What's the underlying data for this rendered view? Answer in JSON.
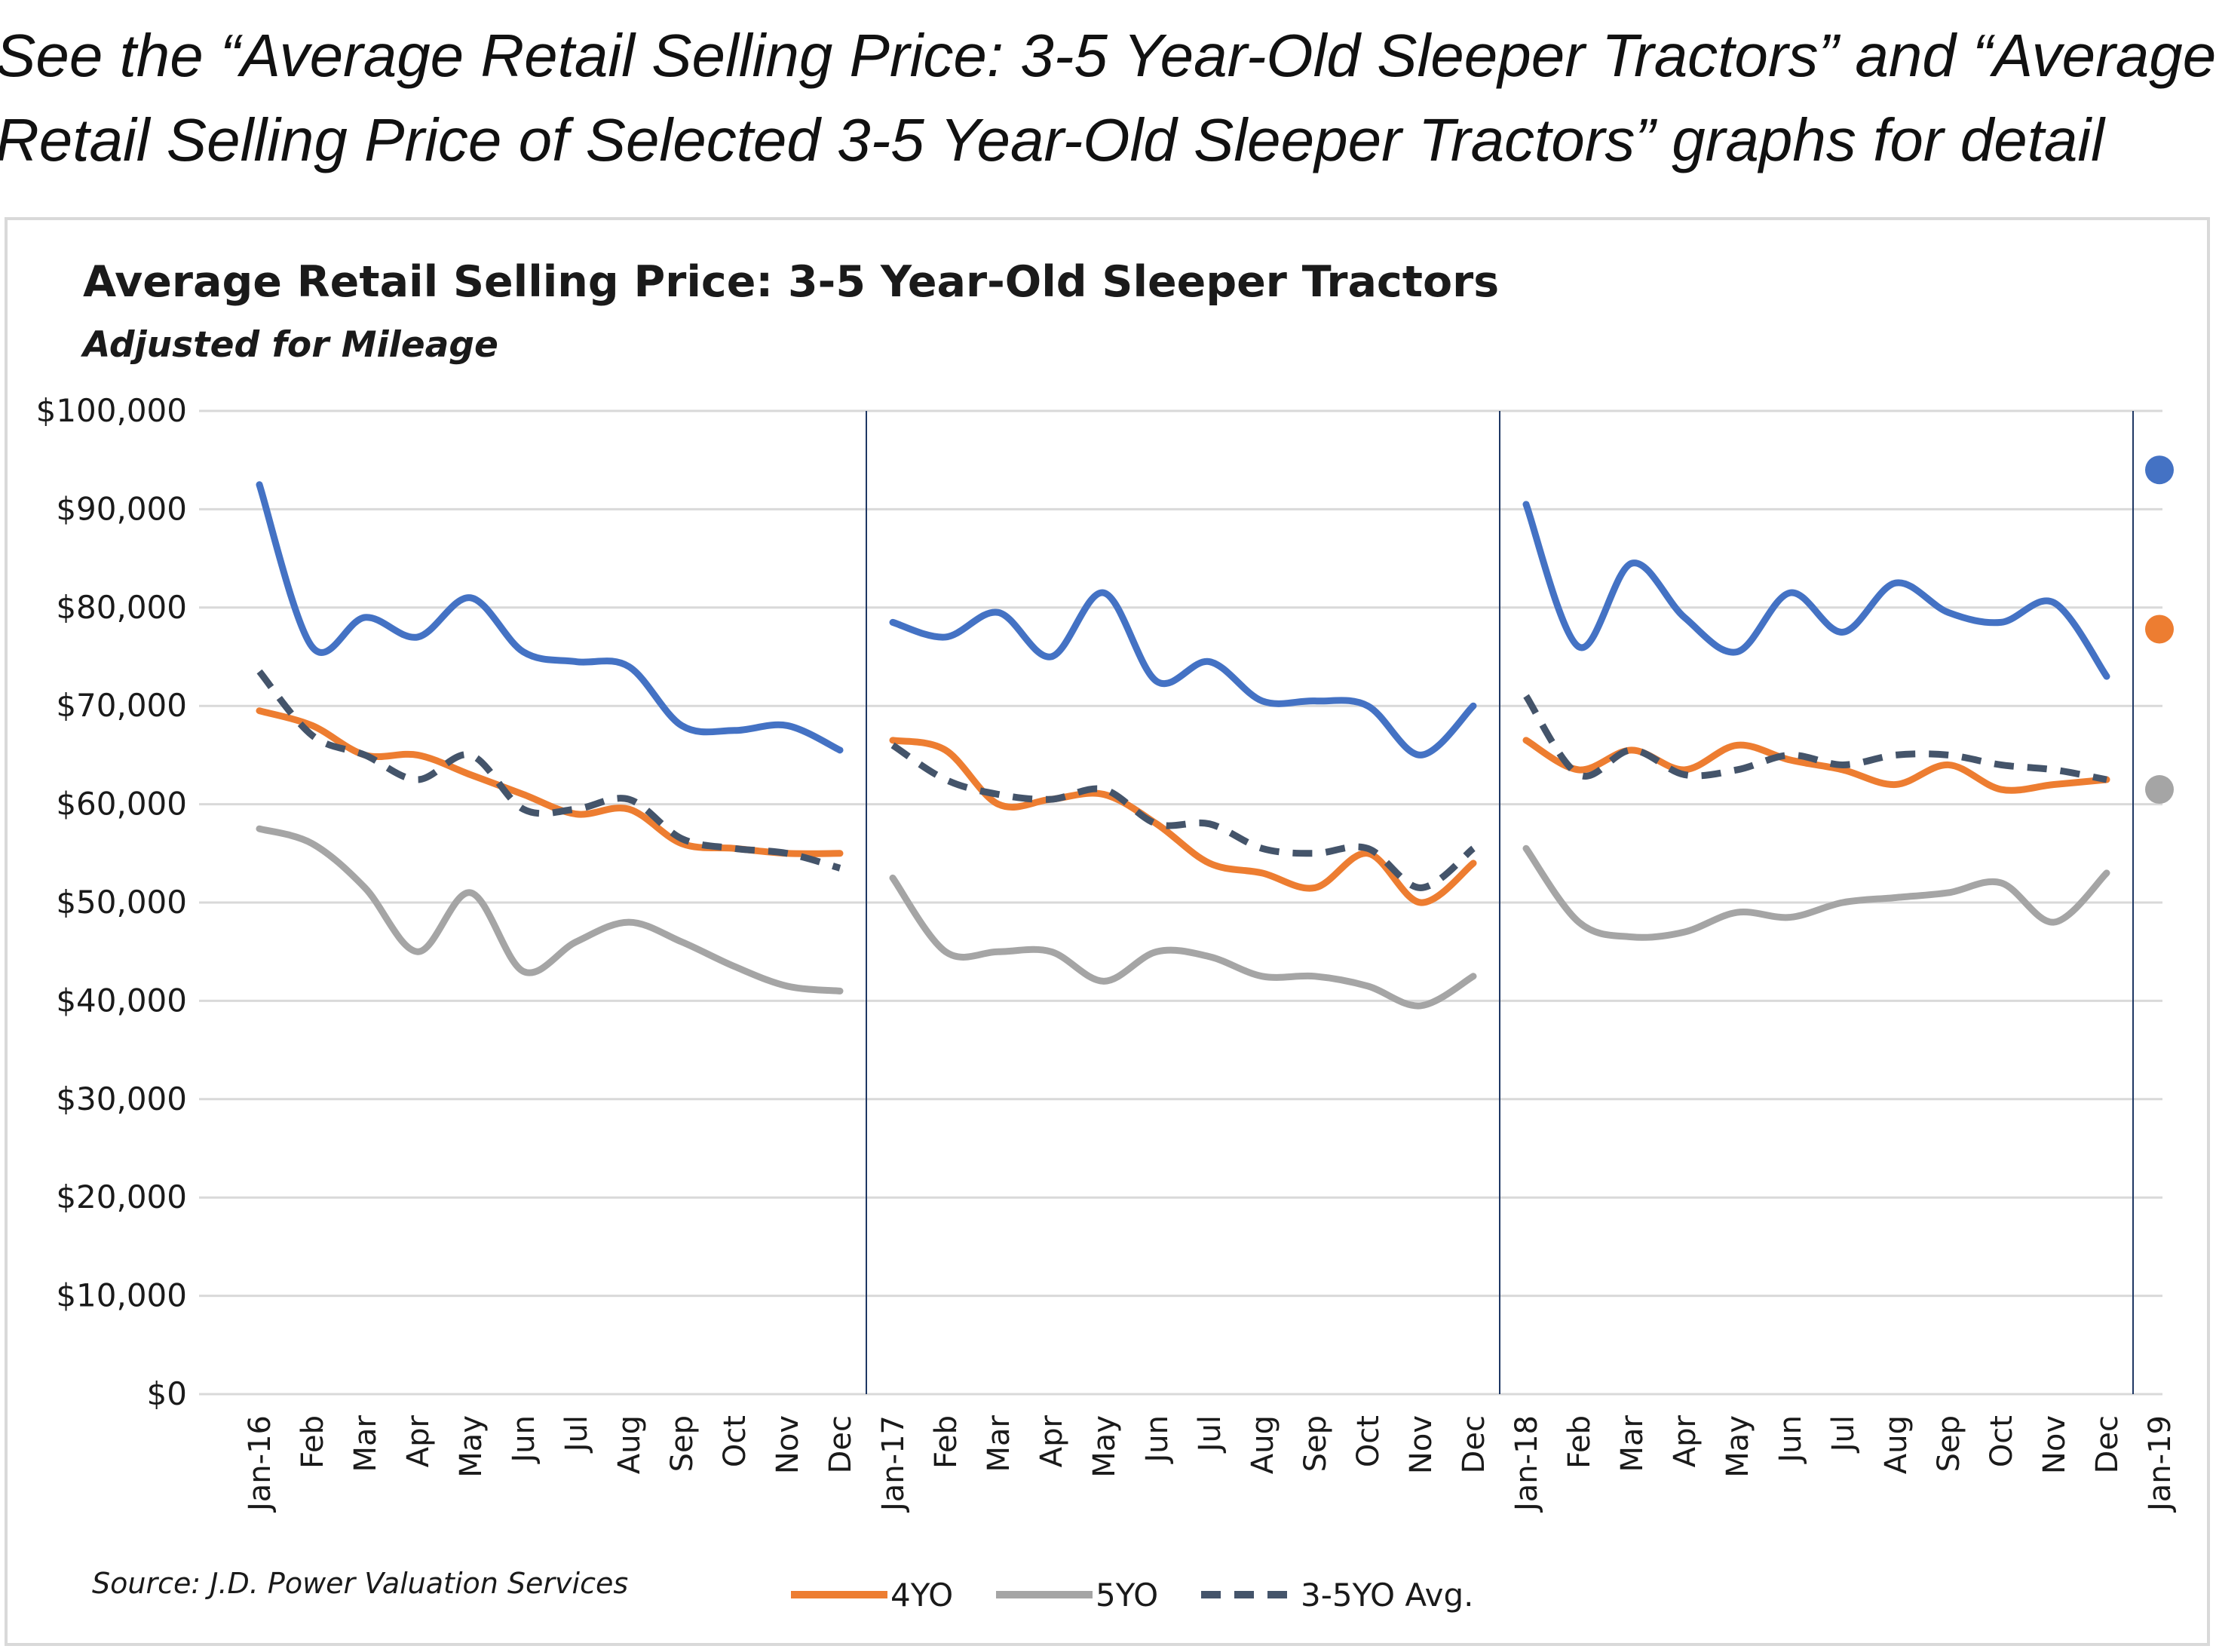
{
  "intro": {
    "line1": "See the “Average Retail Selling Price: 3-5 Year-Old Sleeper Tractors” and “Average",
    "line2": "Retail Selling Price of Selected 3-5 Year-Old Sleeper Tractors” graphs for detail"
  },
  "source": "Source: J.D. Power Valuation Services",
  "colors": {
    "3YO": "#4472c4",
    "4YO": "#ed7d31",
    "5YO": "#a5a5a5",
    "avg": "#44546a",
    "grid": "#d9d9d9",
    "divider": "#1f3864"
  },
  "chart_data": {
    "type": "line",
    "title": "Average Retail Selling Price: 3-5 Year-Old Sleeper Tractors",
    "subtitle": "Adjusted for Mileage",
    "xlabel": "",
    "ylabel": "",
    "ylim": [
      0,
      100000
    ],
    "yticks": [
      "$0",
      "$10,000",
      "$20,000",
      "$30,000",
      "$40,000",
      "$50,000",
      "$60,000",
      "$70,000",
      "$80,000",
      "$90,000",
      "$100,000"
    ],
    "grid": true,
    "legend": "bottom",
    "categories": [
      "Jan-16",
      "Feb",
      "Mar",
      "Apr",
      "May",
      "Jun",
      "Jul",
      "Aug",
      "Sep",
      "Oct",
      "Nov",
      "Dec",
      "Jan-17",
      "Feb",
      "Mar",
      "Apr",
      "May",
      "Jun",
      "Jul",
      "Aug",
      "Sep",
      "Oct",
      "Nov",
      "Dec",
      "Jan-18",
      "Feb",
      "Mar",
      "Apr",
      "May",
      "Jun",
      "Jul",
      "Aug",
      "Sep",
      "Oct",
      "Nov",
      "Dec",
      "Jan-19"
    ],
    "year_boundaries_after_index": [
      11,
      23,
      35
    ],
    "series": [
      {
        "key": "3YO",
        "segments": [
          [
            92500,
            76000,
            79000,
            77000,
            81000,
            75500,
            74500,
            74000,
            68000,
            67500,
            68000,
            65500
          ],
          [
            78500,
            77000,
            79500,
            75000,
            81500,
            72500,
            74500,
            70500,
            70500,
            70000,
            65000,
            70000
          ],
          [
            90500,
            76000,
            84500,
            79000,
            75500,
            81500,
            77500,
            82500,
            79500,
            78500,
            80500,
            73000
          ]
        ],
        "jan19": 94000
      },
      {
        "key": "4YO",
        "name": "4YO",
        "segments": [
          [
            69500,
            68000,
            65000,
            65000,
            63000,
            61000,
            59000,
            59500,
            56000,
            55500,
            55000,
            55000
          ],
          [
            66500,
            65500,
            60000,
            60500,
            61000,
            58000,
            54000,
            53000,
            51500,
            55000,
            50000,
            54000
          ],
          [
            66500,
            63500,
            65500,
            63500,
            66000,
            64500,
            63500,
            62000,
            64000,
            61500,
            62000,
            62500
          ]
        ],
        "jan19": 77800
      },
      {
        "key": "5YO",
        "name": "5YO",
        "segments": [
          [
            57500,
            56000,
            51500,
            45000,
            51000,
            43000,
            46000,
            48000,
            46000,
            43500,
            41500,
            41000
          ],
          [
            52500,
            45000,
            45000,
            45000,
            42000,
            45000,
            44500,
            42500,
            42500,
            41500,
            39500,
            42500
          ],
          [
            55500,
            48000,
            46500,
            47000,
            49000,
            48500,
            50000,
            50500,
            51000,
            52000,
            48000,
            53000
          ]
        ],
        "jan19": 61500
      },
      {
        "key": "avg",
        "name": "3-5YO Avg.",
        "dashed": true,
        "segments": [
          [
            73500,
            67000,
            65000,
            62500,
            65000,
            59500,
            59500,
            60500,
            56500,
            55500,
            55000,
            53500
          ],
          [
            66000,
            62500,
            61000,
            60500,
            61500,
            58000,
            58000,
            55500,
            55000,
            55500,
            51500,
            55500
          ],
          [
            71000,
            63000,
            65500,
            63000,
            63500,
            65000,
            64000,
            65000,
            65000,
            64000,
            63500,
            62500
          ]
        ]
      }
    ]
  }
}
